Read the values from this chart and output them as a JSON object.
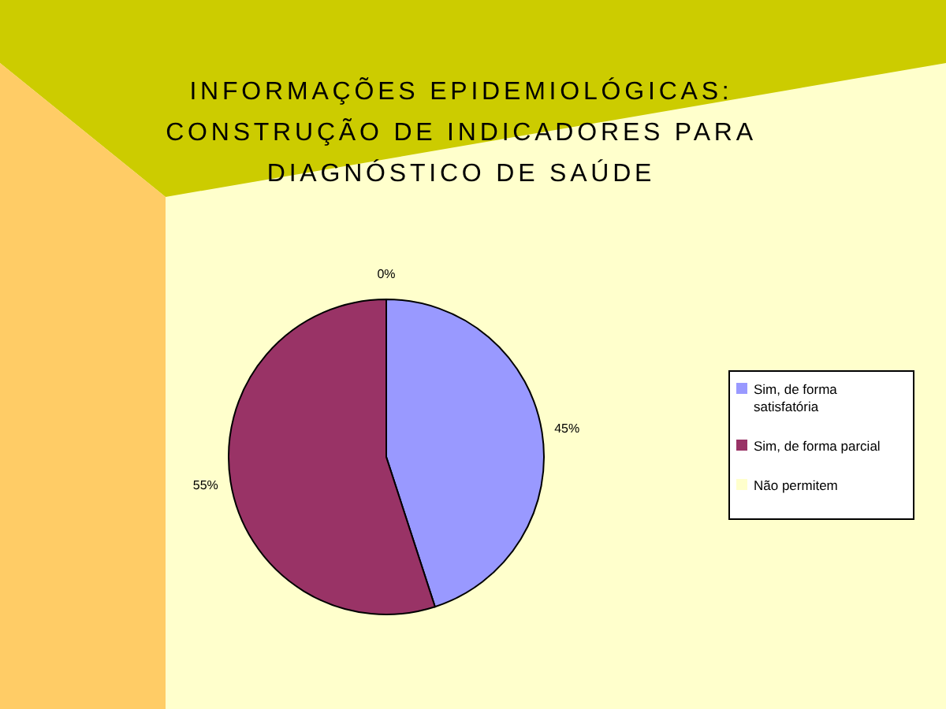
{
  "chart_data": {
    "type": "pie",
    "title": "INFORMAÇÕES EPIDEMIOLÓGICAS:\nCONSTRUÇÃO DE INDICADORES PARA\nDIAGNÓSTICO DE SAÚDE",
    "categories": [
      "Sim, de forma satisfatória",
      "Sim, de forma parcial",
      "Não permitem"
    ],
    "values": [
      45,
      55,
      0
    ],
    "value_labels": [
      "45%",
      "55%",
      "0%"
    ],
    "colors": [
      "#9999ff",
      "#993366",
      "#ffffcc"
    ],
    "legend": "right"
  }
}
